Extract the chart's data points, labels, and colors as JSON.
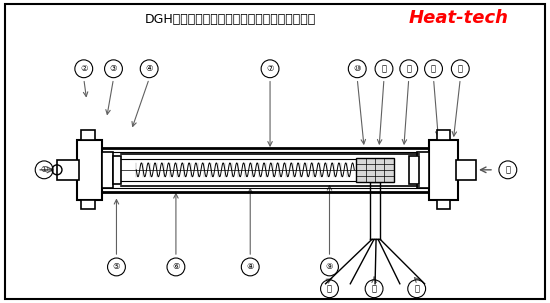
{
  "title": "DGH（二重ガラス管）型熱風ヒーター基本構造",
  "brand": "Heat-tech",
  "bg_color": "#ffffff",
  "fig_w": 5.5,
  "fig_h": 3.03,
  "dpi": 100
}
